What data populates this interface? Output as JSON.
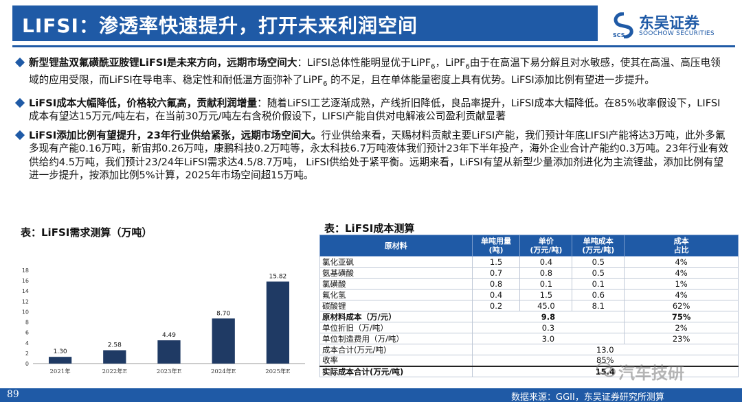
{
  "header": {
    "title": "LIFSI：渗透率快速提升，打开未来利润空间",
    "logo_cn": "东吴证券",
    "logo_en": "SOOCHOW SECURITIES",
    "logo_mark_text": "SCS",
    "accent": "#1f5aa6"
  },
  "bullets": [
    {
      "lead": "新型锂盐双氟磺酰亚胺锂LiFSI是未来方向，远期市场空间大",
      "body": "：LiFSI总体性能明显优于LiPF",
      "sub1": "6",
      "body2": "，LiPF",
      "sub2": "6",
      "body3": "由于在高温下易分解且对水敏感，使其在高温、高压电领域的应用受限，而LiFSI在导电率、稳定性和耐低温方面弥补了LiPF",
      "sub3": "6",
      "body4": " 的不足，且在单体能量密度上具有优势。LiFSI添加比例有望进一步提升。"
    },
    {
      "lead": "LiFSI成本大幅降低，价格较六氟高，贡献利润增量",
      "body": "：随着LiFSI工艺逐渐成熟，产线折旧降低，良品率提升，LiFSI成本大幅降低。在85%收率假设下，LIFSI成本有望达15万元/吨左右，在当前30万元/吨左右含税价假设下，LIFSI产能自供对电解液公司盈利贡献显著"
    },
    {
      "lead": "LiFSI添加比例有望提升，23年行业供给紧张，远期市场空间大。",
      "body": "行业供给来看，天赐材料贡献主要LiFSI产能，我们预计年底LIFSI产能将达3万吨，此外多氟多现有产能0.16万吨，新宙邦0.26万吨，康鹏科技0.2万吨等，永太科技6.7万吨液体我们预计23年下半年投产，海外企业合计产能约0.3万吨。23年行业有效供给约4.5万吨，我们预计23/24年LiFSI需求达4.5/8.7万吨，  LiFSI供给处于紧平衡。远期来看，LiFSI有望从新型少量添加剂进化为主流锂盐，添加比例有望进一步提升，按添加比例5%计算，2025年市场空间超15万吨。"
    }
  ],
  "chart_title": "表：LiFSI需求测算（万吨）",
  "chart_data": {
    "type": "bar",
    "categories": [
      "2021年",
      "2022年E",
      "2023年E",
      "2024年E",
      "2025年E"
    ],
    "values": [
      1.3,
      2.58,
      4.49,
      8.7,
      15.82
    ],
    "value_labels": [
      "1.30",
      "2.58",
      "4.49",
      "8.70",
      "15.82"
    ],
    "ylim": [
      0,
      18
    ],
    "yticks": [
      0,
      2,
      4,
      6,
      8,
      10,
      12,
      14,
      16,
      18
    ],
    "bar_color": "#1f3a64",
    "grid": false
  },
  "table_title": "表：LiFSI成本测算",
  "table": {
    "headers": [
      "原材料",
      "单吨用量（吨）",
      "单价（万元/吨）",
      "单吨成本（万元/吨）",
      "成本占比"
    ],
    "header_lines": [
      [
        "原材料"
      ],
      [
        "单吨用量",
        "(吨)"
      ],
      [
        "单价",
        "(万元/吨)"
      ],
      [
        "单吨成本",
        "(万元/吨)"
      ],
      [
        "成本",
        "占比"
      ]
    ],
    "rows": [
      {
        "name": "氯化亚砜",
        "qty": "1.5",
        "price": "0.4",
        "cost": "0.5",
        "share": "4%"
      },
      {
        "name": "氨基磺酸",
        "qty": "0.7",
        "price": "0.8",
        "cost": "0.5",
        "share": "4%"
      },
      {
        "name": "氯磺酸",
        "qty": "0.8",
        "price": "0.1",
        "cost": "0.1",
        "share": "1%"
      },
      {
        "name": "氟化氢",
        "qty": "0.4",
        "price": "1.5",
        "cost": "0.6",
        "share": "4%"
      },
      {
        "name": "碳酸锂",
        "qty": "0.2",
        "price": "45.0",
        "cost": "8.1",
        "share": "62%"
      }
    ],
    "summary": [
      {
        "name": "原材料成本（万/元）",
        "value": "9.8",
        "share": "75%",
        "bold": true
      },
      {
        "name": "单位折旧（万/吨）",
        "value": "0.3",
        "share": "2%",
        "bold": false
      },
      {
        "name": "单位制造费用（万/吨）",
        "value": "3.0",
        "share": "23%",
        "bold": false
      }
    ],
    "totals": [
      {
        "name": "成本合计(万元/吨)",
        "value": "13.0",
        "bold": false
      },
      {
        "name": "收率",
        "value": "85%",
        "bold": false
      },
      {
        "name": "实际成本合计(万元/吨)",
        "value": "15.4",
        "bold": true
      }
    ]
  },
  "watermark": "汽车技研",
  "footer": {
    "page_number": "89",
    "source": "数据来源：GGII，东吴证券研究所测算"
  }
}
